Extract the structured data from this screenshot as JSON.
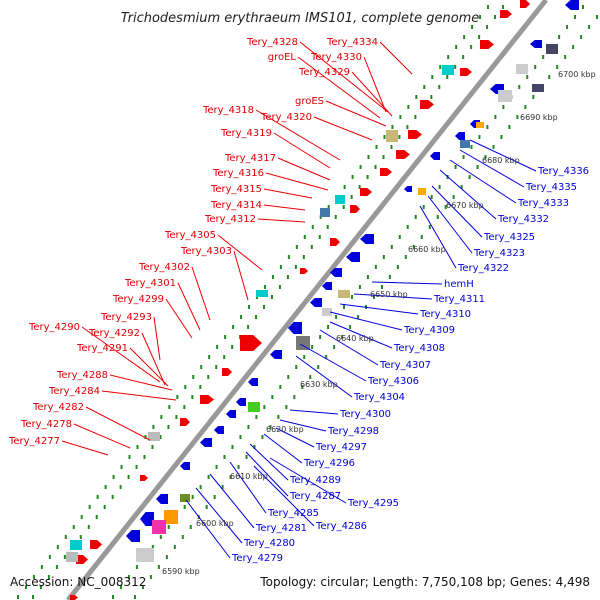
{
  "title": "Trichodesmium erythraeum IMS101, complete genome",
  "footer": {
    "accession": "Accession: NC_008312",
    "summary": "Topology: circular; Length: 7,750,108 bp; Genes: 4,498"
  },
  "colors": {
    "forward": "#ee0000",
    "reverse": "#0000dd",
    "backbone": "#999999",
    "tick": "#228822"
  },
  "kbp_ticks": [
    "6590 kbp",
    "6600 kbp",
    "6610 kbp",
    "6620 kbp",
    "6630 kbp",
    "6640 kbp",
    "6650 kbp",
    "6660 kbp",
    "6670 kbp",
    "6680 kbp",
    "6690 kbp",
    "6700 kbp"
  ],
  "forward_labels": [
    "Tery_4328",
    "Tery_4334",
    "groEL",
    "Tery_4330",
    "Tery_4329",
    "groES",
    "Tery_4318",
    "Tery_4320",
    "Tery_4319",
    "Tery_4317",
    "Tery_4316",
    "Tery_4315",
    "Tery_4314",
    "Tery_4312",
    "Tery_4305",
    "Tery_4303",
    "Tery_4302",
    "Tery_4301",
    "Tery_4299",
    "Tery_4293",
    "Tery_4290",
    "Tery_4292",
    "Tery_4291",
    "Tery_4288",
    "Tery_4284",
    "Tery_4282",
    "Tery_4278",
    "Tery_4277"
  ],
  "reverse_labels": [
    "Tery_4336",
    "Tery_4335",
    "Tery_4333",
    "Tery_4332",
    "Tery_4325",
    "Tery_4323",
    "Tery_4322",
    "hemH",
    "Tery_4311",
    "Tery_4310",
    "Tery_4309",
    "Tery_4308",
    "Tery_4307",
    "Tery_4306",
    "Tery_4304",
    "Tery_4300",
    "Tery_4298",
    "Tery_4297",
    "Tery_4296",
    "Tery_4289",
    "Tery_4287",
    "Tery_4295",
    "Tery_4285",
    "Tery_4286",
    "Tery_4281",
    "Tery_4280",
    "Tery_4279"
  ]
}
